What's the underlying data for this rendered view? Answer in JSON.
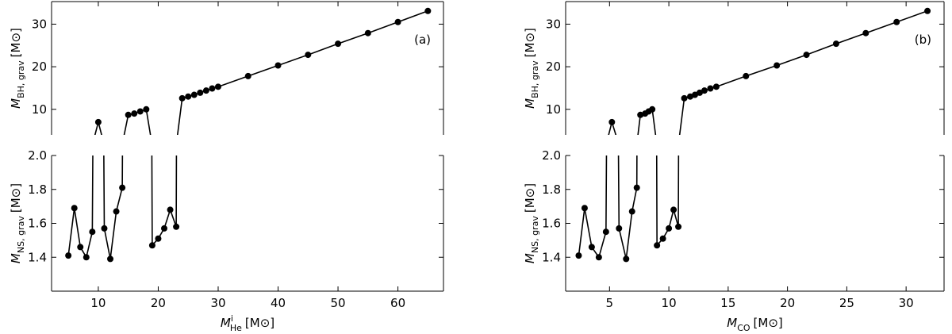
{
  "chart_data": [
    {
      "type": "line",
      "panel_label": "(a)",
      "color": "#000000",
      "x": [
        5,
        6,
        7,
        8,
        9,
        10,
        11,
        12,
        13,
        14,
        15,
        16,
        17,
        18,
        19,
        20,
        21,
        22,
        23,
        24,
        25,
        26,
        27,
        28,
        29,
        30,
        35,
        40,
        45,
        50,
        55,
        60,
        65
      ],
      "values": [
        1.41,
        1.69,
        1.46,
        1.4,
        1.55,
        7.0,
        1.57,
        1.39,
        1.67,
        1.81,
        8.7,
        9.0,
        9.5,
        10.0,
        1.47,
        1.51,
        1.57,
        1.68,
        1.58,
        12.6,
        13.0,
        13.4,
        13.9,
        14.4,
        14.9,
        15.3,
        17.8,
        20.3,
        22.8,
        25.4,
        27.9,
        30.5,
        33.1
      ],
      "xlim": [
        2.2,
        67.6
      ],
      "xticks": [
        10,
        20,
        30,
        40,
        50,
        60
      ],
      "xlabel": {
        "symbol": "M",
        "sup": "i",
        "sub": "He",
        "unit": "[M⊙]"
      },
      "subplots": [
        {
          "ylim": [
            4,
            35.3
          ],
          "yticks": [
            10,
            20,
            30
          ],
          "ylabel": {
            "symbol": "M",
            "sub": "BH, grav",
            "unit": "[M⊙]"
          }
        },
        {
          "ylim": [
            1.2,
            2.0
          ],
          "yticks": [
            1.4,
            1.6,
            1.8,
            {
              "value": 2,
              "label": "2.0"
            }
          ],
          "ylabel": {
            "symbol": "M",
            "sub": "NS, grav",
            "unit": "[M⊙]"
          }
        }
      ]
    },
    {
      "type": "line",
      "panel_label": "(b)",
      "color": "#000000",
      "x": [
        2.4,
        2.9,
        3.5,
        4.1,
        4.7,
        5.2,
        5.8,
        6.4,
        6.9,
        7.3,
        7.6,
        8.0,
        8.3,
        8.6,
        9.0,
        9.5,
        10.0,
        10.4,
        10.8,
        11.3,
        11.8,
        12.2,
        12.6,
        13.0,
        13.5,
        14.0,
        16.5,
        19.1,
        21.6,
        24.1,
        26.6,
        29.2,
        31.8
      ],
      "values": [
        1.41,
        1.69,
        1.46,
        1.4,
        1.55,
        7.0,
        1.57,
        1.39,
        1.67,
        1.81,
        8.7,
        9.0,
        9.5,
        10.0,
        1.47,
        1.51,
        1.57,
        1.68,
        1.58,
        12.6,
        13.0,
        13.4,
        13.9,
        14.4,
        14.9,
        15.3,
        17.8,
        20.3,
        22.8,
        25.4,
        27.9,
        30.5,
        33.1
      ],
      "xlim": [
        1.3,
        33.2
      ],
      "xticks": [
        5,
        10,
        15,
        20,
        25,
        30
      ],
      "xlabel": {
        "symbol": "M",
        "sub": "CO",
        "unit": "[M⊙]"
      },
      "subplots": [
        {
          "ylim": [
            4,
            35.3
          ],
          "yticks": [
            10,
            20,
            30
          ],
          "ylabel": {
            "symbol": "M",
            "sub": "BH, grav",
            "unit": "[M⊙]"
          }
        },
        {
          "ylim": [
            1.2,
            2.0
          ],
          "yticks": [
            1.4,
            1.6,
            1.8,
            {
              "value": 2,
              "label": "2.0"
            }
          ],
          "ylabel": {
            "symbol": "M",
            "sub": "NS, grav",
            "unit": "[M⊙]"
          }
        }
      ]
    }
  ]
}
